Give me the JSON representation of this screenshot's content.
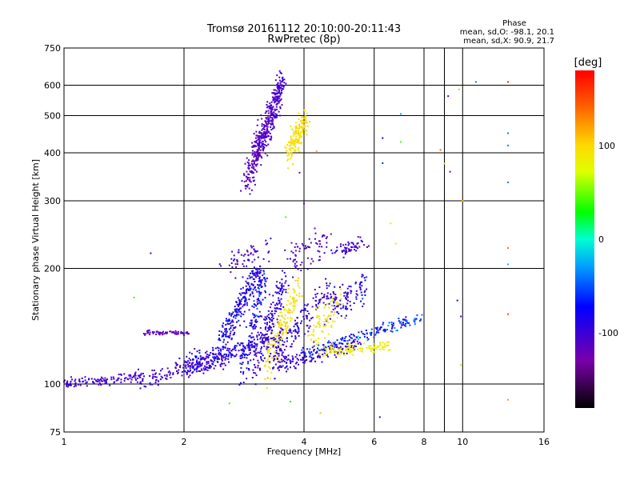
{
  "chart_data": {
    "type": "scatter",
    "title": "Tromsø 20161112 20:10:00-20:11:43",
    "subtitle": "RwPretec (8p)",
    "xlabel": "Frequency [MHz]",
    "ylabel": "Stationary phase Virtual Height [km]",
    "x_scale": "log",
    "y_scale": "log",
    "xlim": [
      1,
      16
    ],
    "ylim": [
      75,
      750
    ],
    "x_ticks": [
      1,
      2,
      4,
      6,
      8,
      10,
      16
    ],
    "x_ticklabels": [
      "1",
      "2",
      "4",
      "6",
      "8",
      "10",
      "16"
    ],
    "x_minor_ticks": [
      9
    ],
    "y_ticks": [
      75,
      100,
      200,
      300,
      400,
      500,
      600,
      750
    ],
    "y_ticklabels": [
      "75",
      "100",
      "200",
      "300",
      "400",
      "500",
      "600",
      "750"
    ],
    "grid": true,
    "phase_box": {
      "heading": "Phase",
      "line1": "mean, sd,O: -98.1, 20.1",
      "line2": "mean, sd,X: 90.9, 21.7"
    },
    "colorbar": {
      "label": "[deg]",
      "range": [
        -180,
        180
      ],
      "ticks": [
        100,
        0,
        -100
      ],
      "ticklabels": [
        "100",
        "0",
        "-100"
      ]
    },
    "clusters": [
      {
        "kind": "line",
        "x0": 1.0,
        "y0": 100,
        "x1": 1.6,
        "y1": 105,
        "spread": 2.5,
        "n": 120,
        "phase": -105,
        "psd": 15
      },
      {
        "kind": "line",
        "x0": 1.55,
        "y0": 101,
        "x1": 2.6,
        "y1": 118,
        "spread": 5,
        "n": 160,
        "phase": -100,
        "psd": 18
      },
      {
        "kind": "line",
        "x0": 1.6,
        "y0": 136,
        "x1": 2.05,
        "y1": 136,
        "spread": 1.5,
        "n": 70,
        "phase": -115,
        "psd": 10
      },
      {
        "kind": "line",
        "x0": 2.0,
        "y0": 112,
        "x1": 3.3,
        "y1": 128,
        "spread": 7,
        "n": 200,
        "phase": -90,
        "psd": 25
      },
      {
        "kind": "line",
        "x0": 2.5,
        "y0": 130,
        "x1": 3.1,
        "y1": 200,
        "spread": 10,
        "n": 220,
        "phase": -85,
        "psd": 25
      },
      {
        "kind": "line",
        "x0": 2.8,
        "y0": 110,
        "x1": 3.2,
        "y1": 195,
        "spread": 12,
        "n": 140,
        "phase": -80,
        "psd": 30
      },
      {
        "kind": "line",
        "x0": 3.0,
        "y0": 110,
        "x1": 3.6,
        "y1": 190,
        "spread": 12,
        "n": 170,
        "phase": -95,
        "psd": 20
      },
      {
        "kind": "line",
        "x0": 3.2,
        "y0": 110,
        "x1": 3.9,
        "y1": 180,
        "spread": 12,
        "n": 160,
        "phase": 95,
        "psd": 15
      },
      {
        "kind": "line",
        "x0": 3.3,
        "y0": 118,
        "x1": 4.6,
        "y1": 175,
        "spread": 12,
        "n": 160,
        "phase": -95,
        "psd": 20
      },
      {
        "kind": "line",
        "x0": 3.4,
        "y0": 112,
        "x1": 5.5,
        "y1": 128,
        "spread": 5,
        "n": 160,
        "phase": -100,
        "psd": 18
      },
      {
        "kind": "line",
        "x0": 4.0,
        "y0": 120,
        "x1": 8.0,
        "y1": 150,
        "spread": 4,
        "n": 160,
        "phase": -60,
        "psd": 30
      },
      {
        "kind": "line",
        "x0": 4.5,
        "y0": 121,
        "x1": 6.5,
        "y1": 126,
        "spread": 3,
        "n": 110,
        "phase": 85,
        "psd": 10
      },
      {
        "kind": "line",
        "x0": 4.6,
        "y0": 160,
        "x1": 5.7,
        "y1": 175,
        "spread": 15,
        "n": 100,
        "phase": -90,
        "psd": 25
      },
      {
        "kind": "line",
        "x0": 4.2,
        "y0": 135,
        "x1": 5.0,
        "y1": 165,
        "spread": 12,
        "n": 70,
        "phase": 90,
        "psd": 15
      },
      {
        "kind": "line",
        "x0": 2.5,
        "y0": 205,
        "x1": 3.3,
        "y1": 225,
        "spread": 14,
        "n": 60,
        "phase": -105,
        "psd": 15
      },
      {
        "kind": "line",
        "x0": 3.6,
        "y0": 205,
        "x1": 4.6,
        "y1": 240,
        "spread": 18,
        "n": 70,
        "phase": -110,
        "psd": 15
      },
      {
        "kind": "line",
        "x0": 4.7,
        "y0": 222,
        "x1": 5.7,
        "y1": 232,
        "spread": 8,
        "n": 55,
        "phase": -100,
        "psd": 20
      },
      {
        "kind": "line",
        "x0": 2.85,
        "y0": 330,
        "x1": 3.2,
        "y1": 450,
        "spread": 22,
        "n": 150,
        "phase": -115,
        "psd": 15
      },
      {
        "kind": "line",
        "x0": 3.0,
        "y0": 400,
        "x1": 3.5,
        "y1": 600,
        "spread": 35,
        "n": 180,
        "phase": -110,
        "psd": 15
      },
      {
        "kind": "line",
        "x0": 3.2,
        "y0": 420,
        "x1": 3.55,
        "y1": 640,
        "spread": 25,
        "n": 120,
        "phase": -105,
        "psd": 15
      },
      {
        "kind": "line",
        "x0": 3.65,
        "y0": 400,
        "x1": 4.05,
        "y1": 495,
        "spread": 28,
        "n": 160,
        "phase": 95,
        "psd": 10
      }
    ],
    "scatter_points": [
      {
        "x": 13,
        "y": 612,
        "phase": 170
      },
      {
        "x": 10.8,
        "y": 612,
        "phase": -40
      },
      {
        "x": 9.2,
        "y": 562,
        "phase": -110
      },
      {
        "x": 9.8,
        "y": 585,
        "phase": 110
      },
      {
        "x": 7.0,
        "y": 505,
        "phase": -30
      },
      {
        "x": 13,
        "y": 450,
        "phase": -40
      },
      {
        "x": 13,
        "y": 418,
        "phase": -40
      },
      {
        "x": 6.3,
        "y": 437,
        "phase": -80
      },
      {
        "x": 7.0,
        "y": 427,
        "phase": 40
      },
      {
        "x": 8.8,
        "y": 407,
        "phase": 140
      },
      {
        "x": 9.0,
        "y": 375,
        "phase": 70
      },
      {
        "x": 9.3,
        "y": 357,
        "phase": -120
      },
      {
        "x": 13,
        "y": 335,
        "phase": -40
      },
      {
        "x": 6.3,
        "y": 376,
        "phase": -60
      },
      {
        "x": 10.0,
        "y": 300,
        "phase": 110
      },
      {
        "x": 6.6,
        "y": 262,
        "phase": 90
      },
      {
        "x": 6.8,
        "y": 232,
        "phase": 100
      },
      {
        "x": 13,
        "y": 226,
        "phase": 140
      },
      {
        "x": 13,
        "y": 205,
        "phase": -20
      },
      {
        "x": 9.7,
        "y": 165,
        "phase": -70
      },
      {
        "x": 9.9,
        "y": 150,
        "phase": -110
      },
      {
        "x": 13,
        "y": 152,
        "phase": 150
      },
      {
        "x": 9.9,
        "y": 112,
        "phase": 60
      },
      {
        "x": 13,
        "y": 91,
        "phase": 120
      },
      {
        "x": 6.2,
        "y": 82,
        "phase": -110
      },
      {
        "x": 4.4,
        "y": 84,
        "phase": 110
      },
      {
        "x": 2.6,
        "y": 89,
        "phase": 40
      },
      {
        "x": 3.7,
        "y": 90,
        "phase": 30
      },
      {
        "x": 1.65,
        "y": 219,
        "phase": -140
      },
      {
        "x": 1.5,
        "y": 168,
        "phase": 40
      },
      {
        "x": 3.6,
        "y": 272,
        "phase": 40
      },
      {
        "x": 4.0,
        "y": 295,
        "phase": -120
      },
      {
        "x": 3.9,
        "y": 355,
        "phase": -120
      },
      {
        "x": 4.3,
        "y": 404,
        "phase": 110
      }
    ]
  }
}
